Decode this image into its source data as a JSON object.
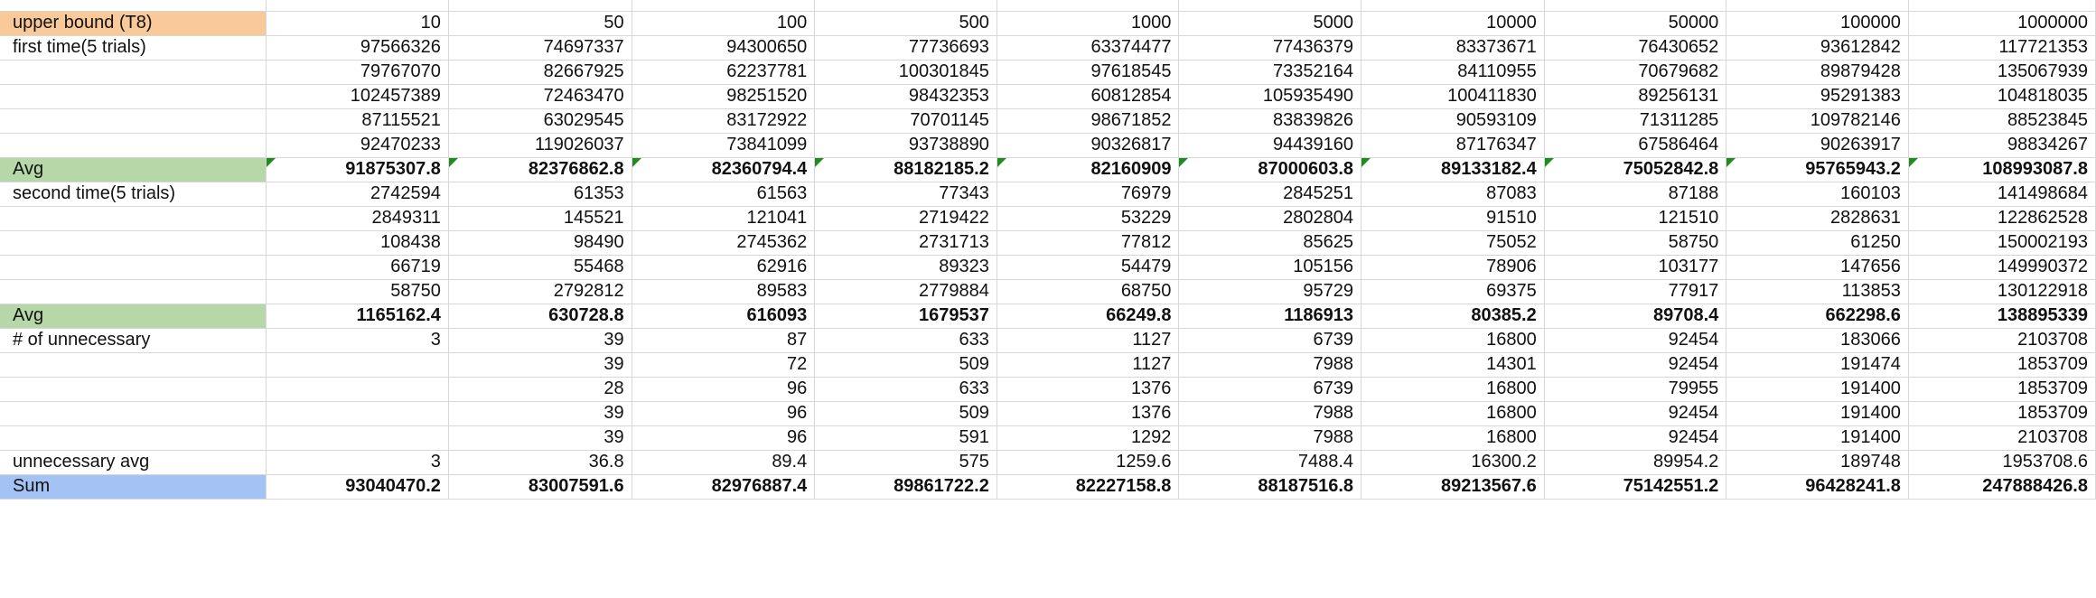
{
  "sheet": {
    "colors": {
      "header_label": "#f9c99a",
      "avg_label": "#b6d7a8",
      "sum_label": "#a4c2f4",
      "gridline": "#d7d7d7",
      "flag": "#1e8c1e"
    },
    "rows": [
      {
        "label": "upper bound (T8)",
        "values": [
          "10",
          "50",
          "100",
          "500",
          "1000",
          "5000",
          "10000",
          "50000",
          "100000",
          "1000000"
        ]
      },
      {
        "label": "first time(5 trials)",
        "values": [
          "97566326",
          "74697337",
          "94300650",
          "77736693",
          "63374477",
          "77436379",
          "83373671",
          "76430652",
          "93612842",
          "117721353"
        ]
      },
      {
        "label": "",
        "values": [
          "79767070",
          "82667925",
          "62237781",
          "100301845",
          "97618545",
          "73352164",
          "84110955",
          "70679682",
          "89879428",
          "135067939"
        ]
      },
      {
        "label": "",
        "values": [
          "102457389",
          "72463470",
          "98251520",
          "98432353",
          "60812854",
          "105935490",
          "100411830",
          "89256131",
          "95291383",
          "104818035"
        ]
      },
      {
        "label": "",
        "values": [
          "87115521",
          "63029545",
          "83172922",
          "70701145",
          "98671852",
          "83839826",
          "90593109",
          "71311285",
          "109782146",
          "88523845"
        ]
      },
      {
        "label": "",
        "values": [
          "92470233",
          "119026037",
          "73841099",
          "93738890",
          "90326817",
          "94439160",
          "87176347",
          "67586464",
          "90263917",
          "98834267"
        ]
      },
      {
        "label": "Avg",
        "values": [
          "91875307.8",
          "82376862.8",
          "82360794.4",
          "88182185.2",
          "82160909",
          "87000603.8",
          "89133182.4",
          "75052842.8",
          "95765943.2",
          "108993087.8"
        ]
      },
      {
        "label": "second time(5 trials)",
        "values": [
          "2742594",
          "61353",
          "61563",
          "77343",
          "76979",
          "2845251",
          "87083",
          "87188",
          "160103",
          "141498684"
        ]
      },
      {
        "label": "",
        "values": [
          "2849311",
          "145521",
          "121041",
          "2719422",
          "53229",
          "2802804",
          "91510",
          "121510",
          "2828631",
          "122862528"
        ]
      },
      {
        "label": "",
        "values": [
          "108438",
          "98490",
          "2745362",
          "2731713",
          "77812",
          "85625",
          "75052",
          "58750",
          "61250",
          "150002193"
        ]
      },
      {
        "label": "",
        "values": [
          "66719",
          "55468",
          "62916",
          "89323",
          "54479",
          "105156",
          "78906",
          "103177",
          "147656",
          "149990372"
        ]
      },
      {
        "label": "",
        "values": [
          "58750",
          "2792812",
          "89583",
          "2779884",
          "68750",
          "95729",
          "69375",
          "77917",
          "113853",
          "130122918"
        ]
      },
      {
        "label": "Avg",
        "values": [
          "1165162.4",
          "630728.8",
          "616093",
          "1679537",
          "66249.8",
          "1186913",
          "80385.2",
          "89708.4",
          "662298.6",
          "138895339"
        ]
      },
      {
        "label": "# of unnecessary",
        "values": [
          "3",
          "39",
          "87",
          "633",
          "1127",
          "6739",
          "16800",
          "92454",
          "183066",
          "2103708"
        ]
      },
      {
        "label": "",
        "values": [
          "",
          "39",
          "72",
          "509",
          "1127",
          "7988",
          "14301",
          "92454",
          "191474",
          "1853709"
        ]
      },
      {
        "label": "",
        "values": [
          "",
          "28",
          "96",
          "633",
          "1376",
          "6739",
          "16800",
          "79955",
          "191400",
          "1853709"
        ]
      },
      {
        "label": "",
        "values": [
          "",
          "39",
          "96",
          "509",
          "1376",
          "7988",
          "16800",
          "92454",
          "191400",
          "1853709"
        ]
      },
      {
        "label": "",
        "values": [
          "",
          "39",
          "96",
          "591",
          "1292",
          "7988",
          "16800",
          "92454",
          "191400",
          "2103708"
        ]
      },
      {
        "label": "unnecessary avg",
        "values": [
          "3",
          "36.8",
          "89.4",
          "575",
          "1259.6",
          "7488.4",
          "16300.2",
          "89954.2",
          "189748",
          "1953708.6"
        ]
      },
      {
        "label": "Sum",
        "values": [
          "93040470.2",
          "83007591.6",
          "82976887.4",
          "89861722.2",
          "82227158.8",
          "88187516.8",
          "89213567.6",
          "75142551.2",
          "96428241.8",
          "247888426.8"
        ]
      }
    ]
  }
}
